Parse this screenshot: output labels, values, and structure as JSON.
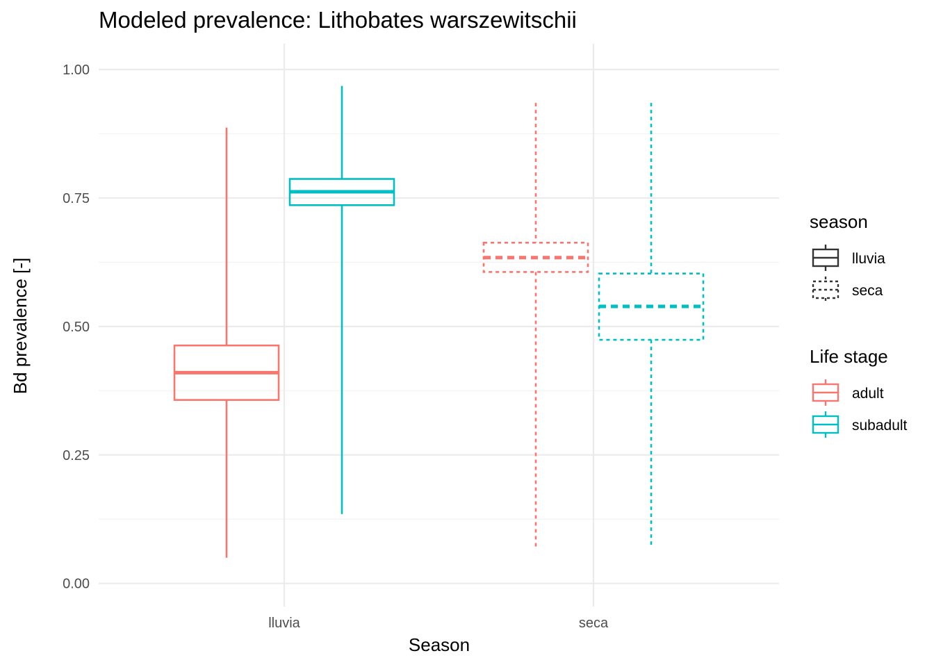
{
  "chart_data": {
    "type": "boxplot",
    "title": "Modeled prevalence: Lithobates warszewitschii",
    "xlabel": "Season",
    "ylabel": "Bd prevalence [-]",
    "categories": [
      "lluvia",
      "seca"
    ],
    "ylim": [
      -0.045,
      1.05
    ],
    "y_ticks": [
      0.0,
      0.25,
      0.5,
      0.75,
      1.0
    ],
    "y_tick_labels": [
      "0.00",
      "0.25",
      "0.50",
      "0.75",
      "1.00"
    ],
    "grid": true,
    "legend_position": "right",
    "legends": [
      {
        "title": "season",
        "entries": [
          {
            "label": "lluvia",
            "linetype": "solid"
          },
          {
            "label": "seca",
            "linetype": "dotted"
          }
        ]
      },
      {
        "title": "Life stage",
        "entries": [
          {
            "label": "adult",
            "color": "#F8766D"
          },
          {
            "label": "subadult",
            "color": "#00BFC4"
          }
        ]
      }
    ],
    "series": [
      {
        "name": "adult",
        "color": "#F8766D",
        "boxes": [
          {
            "category": "lluvia",
            "season": "lluvia",
            "linetype": "solid",
            "min": 0.05,
            "q1": 0.357,
            "median": 0.41,
            "q3": 0.463,
            "max": 0.887
          },
          {
            "category": "seca",
            "season": "seca",
            "linetype": "dotted",
            "min": 0.072,
            "q1": 0.606,
            "median": 0.634,
            "q3": 0.663,
            "max": 0.935
          }
        ]
      },
      {
        "name": "subadult",
        "color": "#00BFC4",
        "boxes": [
          {
            "category": "lluvia",
            "season": "lluvia",
            "linetype": "solid",
            "min": 0.135,
            "q1": 0.736,
            "median": 0.762,
            "q3": 0.787,
            "max": 0.968
          },
          {
            "category": "seca",
            "season": "seca",
            "linetype": "dotted",
            "min": 0.071,
            "q1": 0.474,
            "median": 0.539,
            "q3": 0.603,
            "max": 0.935
          }
        ]
      }
    ]
  }
}
